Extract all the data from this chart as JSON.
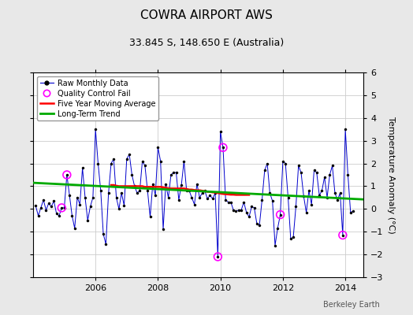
{
  "title": "COWRA AIRPORT AWS",
  "subtitle": "33.845 S, 148.650 E (Australia)",
  "ylabel": "Temperature Anomaly (°C)",
  "watermark": "Berkeley Earth",
  "ylim": [
    -3,
    6
  ],
  "yticks": [
    -3,
    -2,
    -1,
    0,
    1,
    2,
    3,
    4,
    5,
    6
  ],
  "xlim": [
    2004.0,
    2014.58
  ],
  "outer_bg": "#e8e8e8",
  "plot_bg": "#ffffff",
  "raw_color": "#0000cc",
  "ma_color": "#ff0000",
  "trend_color": "#00aa00",
  "qc_color": "#ff00ff",
  "raw_data": [
    [
      2004.083,
      0.15
    ],
    [
      2004.167,
      -0.3
    ],
    [
      2004.25,
      0.05
    ],
    [
      2004.333,
      0.4
    ],
    [
      2004.417,
      -0.05
    ],
    [
      2004.5,
      0.25
    ],
    [
      2004.583,
      0.1
    ],
    [
      2004.667,
      0.35
    ],
    [
      2004.75,
      -0.2
    ],
    [
      2004.833,
      -0.3
    ],
    [
      2004.917,
      0.05
    ],
    [
      2005.0,
      0.05
    ],
    [
      2005.083,
      1.5
    ],
    [
      2005.167,
      0.6
    ],
    [
      2005.25,
      -0.3
    ],
    [
      2005.333,
      -0.85
    ],
    [
      2005.417,
      0.5
    ],
    [
      2005.5,
      0.2
    ],
    [
      2005.583,
      1.8
    ],
    [
      2005.667,
      0.5
    ],
    [
      2005.75,
      -0.5
    ],
    [
      2005.833,
      0.1
    ],
    [
      2005.917,
      0.5
    ],
    [
      2006.0,
      3.5
    ],
    [
      2006.083,
      2.0
    ],
    [
      2006.167,
      0.8
    ],
    [
      2006.25,
      -1.1
    ],
    [
      2006.333,
      -1.55
    ],
    [
      2006.417,
      0.7
    ],
    [
      2006.5,
      2.0
    ],
    [
      2006.583,
      2.2
    ],
    [
      2006.667,
      0.5
    ],
    [
      2006.75,
      0.0
    ],
    [
      2006.833,
      0.7
    ],
    [
      2006.917,
      0.15
    ],
    [
      2007.0,
      2.2
    ],
    [
      2007.083,
      2.4
    ],
    [
      2007.167,
      1.5
    ],
    [
      2007.25,
      1.0
    ],
    [
      2007.333,
      0.7
    ],
    [
      2007.417,
      0.8
    ],
    [
      2007.5,
      2.1
    ],
    [
      2007.583,
      1.9
    ],
    [
      2007.667,
      0.8
    ],
    [
      2007.75,
      -0.35
    ],
    [
      2007.833,
      1.1
    ],
    [
      2007.917,
      0.6
    ],
    [
      2008.0,
      2.7
    ],
    [
      2008.083,
      2.1
    ],
    [
      2008.167,
      -0.9
    ],
    [
      2008.25,
      1.1
    ],
    [
      2008.333,
      0.5
    ],
    [
      2008.417,
      1.5
    ],
    [
      2008.5,
      1.6
    ],
    [
      2008.583,
      1.6
    ],
    [
      2008.667,
      0.4
    ],
    [
      2008.75,
      1.05
    ],
    [
      2008.833,
      2.1
    ],
    [
      2008.917,
      0.8
    ],
    [
      2009.0,
      0.8
    ],
    [
      2009.083,
      0.5
    ],
    [
      2009.167,
      0.2
    ],
    [
      2009.25,
      1.1
    ],
    [
      2009.333,
      0.5
    ],
    [
      2009.417,
      0.7
    ],
    [
      2009.5,
      0.8
    ],
    [
      2009.583,
      0.45
    ],
    [
      2009.667,
      0.6
    ],
    [
      2009.75,
      0.45
    ],
    [
      2009.833,
      0.7
    ],
    [
      2009.917,
      -2.1
    ],
    [
      2010.0,
      3.4
    ],
    [
      2010.083,
      2.7
    ],
    [
      2010.167,
      0.4
    ],
    [
      2010.25,
      0.3
    ],
    [
      2010.333,
      0.3
    ],
    [
      2010.417,
      -0.05
    ],
    [
      2010.5,
      -0.1
    ],
    [
      2010.583,
      -0.05
    ],
    [
      2010.667,
      -0.05
    ],
    [
      2010.75,
      0.3
    ],
    [
      2010.833,
      -0.15
    ],
    [
      2010.917,
      -0.35
    ],
    [
      2011.0,
      0.1
    ],
    [
      2011.083,
      0.05
    ],
    [
      2011.167,
      -0.65
    ],
    [
      2011.25,
      -0.7
    ],
    [
      2011.333,
      0.4
    ],
    [
      2011.417,
      1.7
    ],
    [
      2011.5,
      2.0
    ],
    [
      2011.583,
      0.7
    ],
    [
      2011.667,
      0.35
    ],
    [
      2011.75,
      -1.6
    ],
    [
      2011.833,
      -0.85
    ],
    [
      2011.917,
      -0.25
    ],
    [
      2012.0,
      2.1
    ],
    [
      2012.083,
      2.0
    ],
    [
      2012.167,
      0.5
    ],
    [
      2012.25,
      -1.3
    ],
    [
      2012.333,
      -1.25
    ],
    [
      2012.417,
      0.1
    ],
    [
      2012.5,
      1.9
    ],
    [
      2012.583,
      1.6
    ],
    [
      2012.667,
      0.55
    ],
    [
      2012.75,
      -0.15
    ],
    [
      2012.833,
      0.8
    ],
    [
      2012.917,
      0.2
    ],
    [
      2013.0,
      1.7
    ],
    [
      2013.083,
      1.6
    ],
    [
      2013.167,
      0.6
    ],
    [
      2013.25,
      0.8
    ],
    [
      2013.333,
      1.4
    ],
    [
      2013.417,
      0.5
    ],
    [
      2013.5,
      1.5
    ],
    [
      2013.583,
      1.9
    ],
    [
      2013.667,
      0.7
    ],
    [
      2013.75,
      0.4
    ],
    [
      2013.833,
      0.7
    ],
    [
      2013.917,
      -1.15
    ],
    [
      2014.0,
      3.5
    ],
    [
      2014.083,
      1.5
    ],
    [
      2014.167,
      -0.15
    ],
    [
      2014.25,
      -0.1
    ]
  ],
  "qc_fail": [
    [
      2004.917,
      0.05
    ],
    [
      2005.083,
      1.5
    ],
    [
      2009.917,
      -2.1
    ],
    [
      2010.083,
      2.7
    ],
    [
      2011.917,
      -0.25
    ],
    [
      2013.917,
      -1.15
    ]
  ],
  "moving_avg": [
    [
      2006.5,
      1.05
    ],
    [
      2006.583,
      1.05
    ],
    [
      2006.667,
      1.02
    ],
    [
      2006.75,
      1.0
    ],
    [
      2006.833,
      1.0
    ],
    [
      2006.917,
      1.0
    ],
    [
      2007.0,
      1.0
    ],
    [
      2007.083,
      1.0
    ],
    [
      2007.167,
      1.0
    ],
    [
      2007.25,
      1.0
    ],
    [
      2007.333,
      1.0
    ],
    [
      2007.417,
      1.0
    ],
    [
      2007.5,
      1.0
    ],
    [
      2007.583,
      0.97
    ],
    [
      2007.667,
      0.97
    ],
    [
      2007.75,
      0.97
    ],
    [
      2007.833,
      0.97
    ],
    [
      2007.917,
      0.97
    ],
    [
      2008.0,
      0.97
    ],
    [
      2008.083,
      0.97
    ],
    [
      2008.167,
      0.95
    ],
    [
      2008.25,
      0.93
    ],
    [
      2008.333,
      0.91
    ],
    [
      2008.417,
      0.9
    ],
    [
      2008.5,
      0.9
    ],
    [
      2008.583,
      0.9
    ],
    [
      2008.667,
      0.9
    ],
    [
      2008.75,
      0.9
    ],
    [
      2008.833,
      0.9
    ],
    [
      2008.917,
      0.88
    ],
    [
      2009.0,
      0.85
    ],
    [
      2009.083,
      0.85
    ],
    [
      2009.167,
      0.83
    ],
    [
      2009.25,
      0.82
    ],
    [
      2009.333,
      0.82
    ],
    [
      2009.417,
      0.8
    ],
    [
      2009.5,
      0.78
    ],
    [
      2009.583,
      0.76
    ],
    [
      2009.667,
      0.75
    ],
    [
      2009.75,
      0.73
    ],
    [
      2009.833,
      0.72
    ],
    [
      2009.917,
      0.7
    ],
    [
      2010.0,
      0.68
    ],
    [
      2010.083,
      0.66
    ],
    [
      2010.167,
      0.65
    ],
    [
      2010.25,
      0.64
    ],
    [
      2010.333,
      0.63
    ],
    [
      2010.417,
      0.63
    ],
    [
      2010.5,
      0.62
    ],
    [
      2010.583,
      0.62
    ],
    [
      2010.667,
      0.62
    ],
    [
      2010.75,
      0.62
    ],
    [
      2010.833,
      0.62
    ],
    [
      2010.917,
      0.62
    ]
  ],
  "trend_x": [
    2004.0,
    2014.58
  ],
  "trend_y": [
    1.15,
    0.42
  ],
  "grid_color": "#cccccc",
  "xtick_positions": [
    2006,
    2008,
    2010,
    2012,
    2014
  ],
  "title_fontsize": 11,
  "subtitle_fontsize": 9,
  "tick_fontsize": 8,
  "ylabel_fontsize": 8,
  "legend_fontsize": 7,
  "watermark_fontsize": 7
}
